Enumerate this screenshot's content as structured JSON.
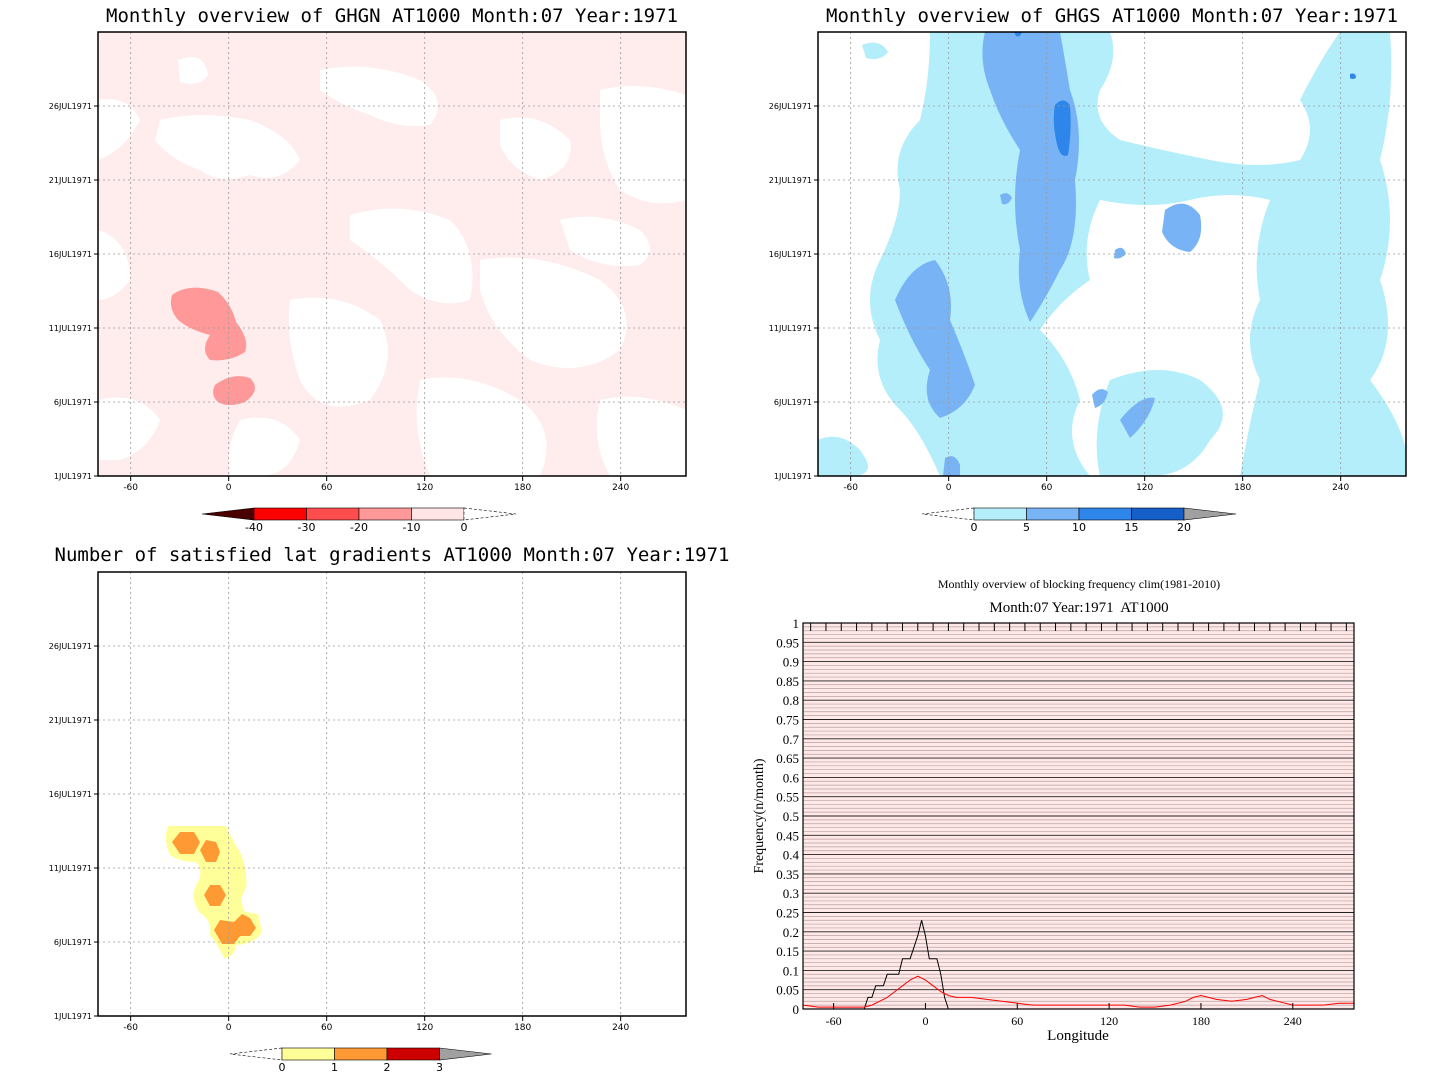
{
  "panels": [
    {
      "id": "ghgn",
      "title": "Monthly overview of GHGN AT1000 Month:07 Year:1971",
      "xticks": [
        "-60",
        "0",
        "60",
        "120",
        "180",
        "240"
      ],
      "xvals": [
        -60,
        0,
        60,
        120,
        180,
        240
      ],
      "xlim": [
        -80,
        280
      ],
      "ylabels": [
        "1JUL1971",
        "6JUL1971",
        "11JUL1971",
        "16JUL1971",
        "21JUL1971",
        "26JUL1971"
      ],
      "yvals": [
        1,
        6,
        11,
        16,
        21,
        26
      ],
      "ylim": [
        1,
        31
      ],
      "colorbar": {
        "labels": [
          "-40",
          "-30",
          "-20",
          "-10",
          "0"
        ],
        "colors": [
          "#ff0000",
          "#ff4d4d",
          "#ff9999",
          "#ffe5e5"
        ],
        "low_arrow": "#4a0000",
        "high_arrow": "#ffffff"
      }
    },
    {
      "id": "ghgs",
      "title": "Monthly overview of GHGS AT1000 Month:07 Year:1971",
      "xticks": [
        "-60",
        "0",
        "60",
        "120",
        "180",
        "240"
      ],
      "xvals": [
        -60,
        0,
        60,
        120,
        180,
        240
      ],
      "xlim": [
        -80,
        280
      ],
      "ylabels": [
        "1JUL1971",
        "6JUL1971",
        "11JUL1971",
        "16JUL1971",
        "21JUL1971",
        "26JUL1971"
      ],
      "yvals": [
        1,
        6,
        11,
        16,
        21,
        26
      ],
      "ylim": [
        1,
        31
      ],
      "colorbar": {
        "labels": [
          "0",
          "5",
          "10",
          "15",
          "20"
        ],
        "colors": [
          "#b3eefa",
          "#78b4f5",
          "#2f86ea",
          "#1560c8"
        ],
        "low_arrow": "#ffffff",
        "high_arrow": "#a0a0a0"
      }
    },
    {
      "id": "lat",
      "title": "Number of satisfied lat gradients AT1000 Month:07 Year:1971",
      "xticks": [
        "-60",
        "0",
        "60",
        "120",
        "180",
        "240"
      ],
      "xvals": [
        -60,
        0,
        60,
        120,
        180,
        240
      ],
      "xlim": [
        -80,
        280
      ],
      "ylabels": [
        "1JUL1971",
        "6JUL1971",
        "11JUL1971",
        "16JUL1971",
        "21JUL1971",
        "26JUL1971"
      ],
      "yvals": [
        1,
        6,
        11,
        16,
        21,
        26
      ],
      "ylim": [
        1,
        31
      ],
      "colorbar": {
        "labels": [
          "0",
          "1",
          "2",
          "3"
        ],
        "colors": [
          "#ffff99",
          "#ff9933",
          "#cc0000"
        ],
        "low_arrow": "#ffffff",
        "high_arrow": "#a0a0a0"
      }
    }
  ],
  "fills": {
    "ghgn_base": "#ffecec",
    "ghgn_mid": "#ff9999",
    "ghgs_light": "#b3eefa",
    "ghgs_mid": "#78b4f5",
    "ghgs_dark": "#2f86ea",
    "lat_one": "#ffff99",
    "lat_two": "#ff9933"
  },
  "chart_data": {
    "type": "line",
    "title": "Monthly overview of blocking frequency clim(1981-2010)",
    "subtitle": "Month:07 Year:1971  AT1000",
    "xlabel": "Longitude",
    "ylabel": "Frequency(n/month)",
    "xlim": [
      -80,
      280
    ],
    "ylim": [
      0,
      1
    ],
    "xticks": [
      "-60",
      "0",
      "60",
      "120",
      "180",
      "240"
    ],
    "xtick_values": [
      -60,
      0,
      60,
      120,
      180,
      240
    ],
    "yticks": [
      "0",
      "0.05",
      "0.1",
      "0.15",
      "0.2",
      "0.25",
      "0.3",
      "0.35",
      "0.4",
      "0.45",
      "0.5",
      "0.55",
      "0.6",
      "0.65",
      "0.7",
      "0.75",
      "0.8",
      "0.85",
      "0.9",
      "0.95",
      "1"
    ],
    "ytick_values": [
      0,
      0.05,
      0.1,
      0.15,
      0.2,
      0.25,
      0.3,
      0.35,
      0.4,
      0.45,
      0.5,
      0.55,
      0.6,
      0.65,
      0.7,
      0.75,
      0.8,
      0.85,
      0.9,
      0.95,
      1
    ],
    "grid": true,
    "background": "#ffe8e8",
    "series": [
      {
        "color": "#000000",
        "x": [
          -80,
          -40,
          -37.5,
          -35,
          -32.5,
          -30,
          -27.5,
          -25,
          -22.5,
          -20,
          -17.5,
          -15,
          -12.5,
          -10,
          -7.5,
          -5,
          -2.5,
          0,
          2.5,
          5,
          7.5,
          10,
          12.5,
          15,
          280
        ],
        "y": [
          0,
          0,
          0.03,
          0.03,
          0.06,
          0.06,
          0.06,
          0.09,
          0.09,
          0.09,
          0.09,
          0.13,
          0.13,
          0.13,
          0.16,
          0.19,
          0.23,
          0.19,
          0.13,
          0.13,
          0.13,
          0.09,
          0.03,
          0,
          0
        ]
      },
      {
        "color": "#ff0000",
        "x": [
          -80,
          -70,
          -60,
          -50,
          -40,
          -35,
          -30,
          -25,
          -20,
          -15,
          -10,
          -5,
          0,
          5,
          10,
          15,
          20,
          30,
          40,
          50,
          60,
          70,
          80,
          90,
          100,
          110,
          120,
          130,
          140,
          150,
          160,
          170,
          175,
          180,
          185,
          190,
          200,
          210,
          215,
          220,
          225,
          230,
          240,
          250,
          260,
          270,
          280
        ],
        "y": [
          0.01,
          0.005,
          0.005,
          0.005,
          0.005,
          0.01,
          0.02,
          0.03,
          0.045,
          0.06,
          0.075,
          0.085,
          0.075,
          0.06,
          0.045,
          0.035,
          0.03,
          0.03,
          0.025,
          0.02,
          0.015,
          0.01,
          0.01,
          0.01,
          0.01,
          0.01,
          0.01,
          0.01,
          0.005,
          0.005,
          0.01,
          0.02,
          0.03,
          0.035,
          0.03,
          0.025,
          0.02,
          0.025,
          0.03,
          0.035,
          0.025,
          0.02,
          0.01,
          0.01,
          0.01,
          0.015,
          0.015
        ]
      }
    ]
  }
}
